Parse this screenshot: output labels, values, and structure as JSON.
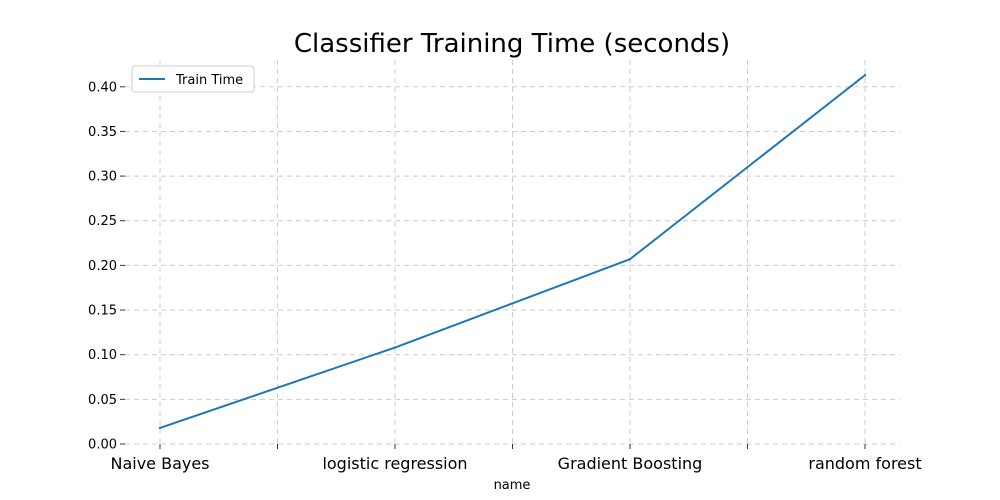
{
  "chart_data": {
    "type": "line",
    "title": "Classifier Training Time (seconds)",
    "xlabel": "name",
    "ylabel": "",
    "categories": [
      "Naive Bayes",
      "logistic regression",
      "Gradient Boosting",
      "random forest"
    ],
    "series": [
      {
        "name": "Train Time",
        "values": [
          0.018,
          0.108,
          0.207,
          0.413
        ],
        "color": "#1f77b4"
      }
    ],
    "ylim": [
      0,
      0.43
    ],
    "yticks": [
      "0.00",
      "0.05",
      "0.10",
      "0.15",
      "0.20",
      "0.25",
      "0.30",
      "0.35",
      "0.40"
    ],
    "grid": true,
    "legend_position": "top-left"
  }
}
